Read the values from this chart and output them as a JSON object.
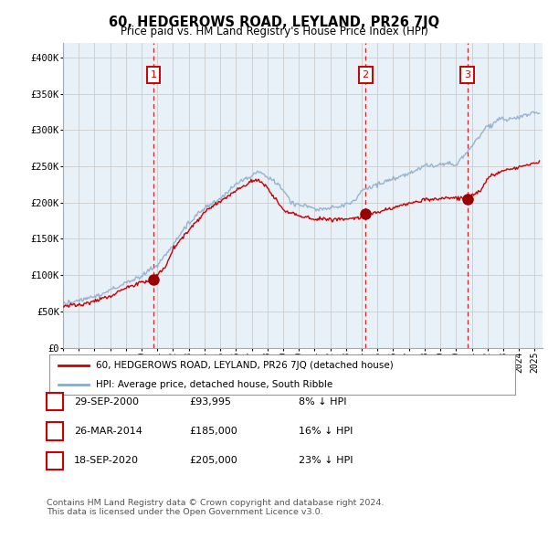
{
  "title": "60, HEDGEROWS ROAD, LEYLAND, PR26 7JQ",
  "subtitle": "Price paid vs. HM Land Registry's House Price Index (HPI)",
  "ylabel_ticks": [
    "£0",
    "£50K",
    "£100K",
    "£150K",
    "£200K",
    "£250K",
    "£300K",
    "£350K",
    "£400K"
  ],
  "ytick_values": [
    0,
    50000,
    100000,
    150000,
    200000,
    250000,
    300000,
    350000,
    400000
  ],
  "ylim": [
    0,
    420000
  ],
  "xlim_start": 1995.0,
  "xlim_end": 2025.5,
  "red_line_color": "#cc0000",
  "blue_line_color": "#88aacc",
  "chart_bg_color": "#e8f0f8",
  "vline_color": "#cc0000",
  "marker_color": "#990000",
  "sale_points": [
    {
      "year": 2000.75,
      "price": 93995,
      "label": "1"
    },
    {
      "year": 2014.24,
      "price": 185000,
      "label": "2"
    },
    {
      "year": 2020.72,
      "price": 205000,
      "label": "3"
    }
  ],
  "legend_red_label": "60, HEDGEROWS ROAD, LEYLAND, PR26 7JQ (detached house)",
  "legend_blue_label": "HPI: Average price, detached house, South Ribble",
  "table_rows": [
    {
      "num": "1",
      "date": "29-SEP-2000",
      "price": "£93,995",
      "hpi": "8% ↓ HPI"
    },
    {
      "num": "2",
      "date": "26-MAR-2014",
      "price": "£185,000",
      "hpi": "16% ↓ HPI"
    },
    {
      "num": "3",
      "date": "18-SEP-2020",
      "price": "£205,000",
      "hpi": "23% ↓ HPI"
    }
  ],
  "footer": "Contains HM Land Registry data © Crown copyright and database right 2024.\nThis data is licensed under the Open Government Licence v3.0.",
  "background_color": "#ffffff",
  "grid_color": "#cccccc"
}
